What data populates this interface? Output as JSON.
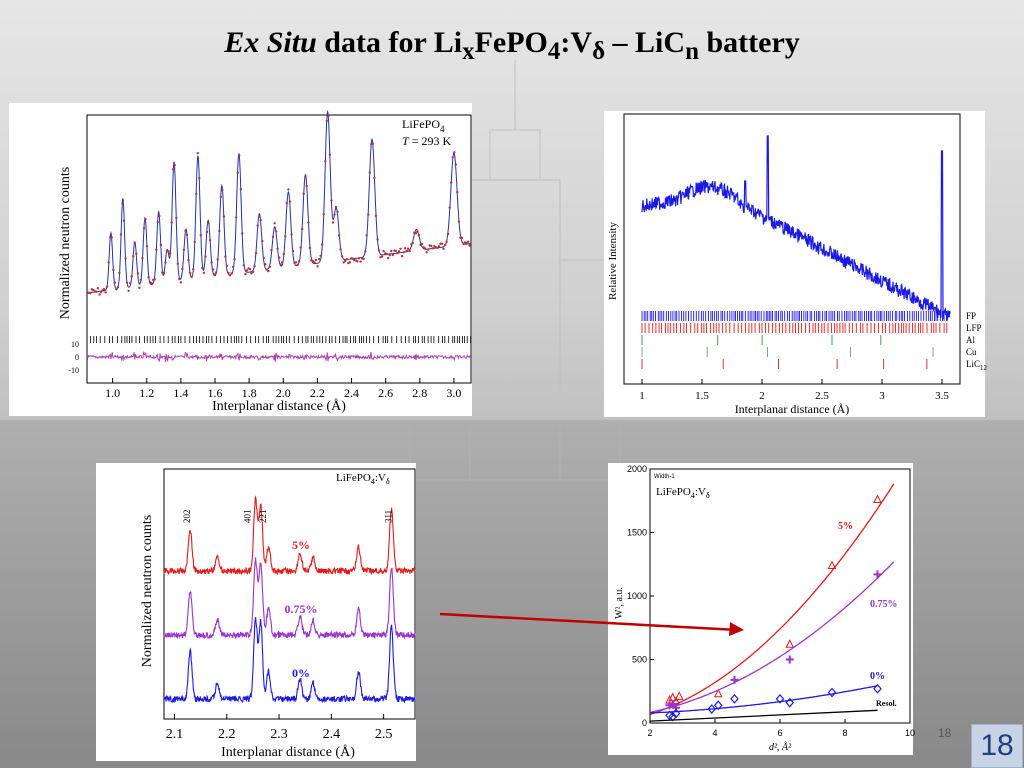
{
  "slide": {
    "title": {
      "italic": "Ex Situ",
      "text": " data for Li",
      "sub1": "x",
      "t2": "FePO",
      "sub2": "4",
      "t3": ":V",
      "sub3": "δ",
      "t4": " – LiC",
      "sub4": "n",
      "t5": " battery"
    },
    "slide_number_small": "18",
    "slide_number_badge": "18"
  },
  "chart_data": [
    {
      "type": "line",
      "panel": "rietveld",
      "annotation_line1": "LiFePO",
      "annotation_sub": "4",
      "annotation_line2_italic": "T",
      "annotation_line2": " = 293 K",
      "xlabel": "Interplanar distance (Å)",
      "ylabel": "Normalized neutron counts",
      "xlim": [
        0.85,
        3.1
      ],
      "xticks": [
        "1.0",
        "1.2",
        "1.4",
        "1.6",
        "1.8",
        "2.0",
        "2.2",
        "2.4",
        "2.6",
        "2.8",
        "3.0"
      ],
      "diff_ticks": [
        "10",
        "0",
        "-10"
      ],
      "peaks": [
        {
          "d": 0.99,
          "h": 0.38
        },
        {
          "d": 1.06,
          "h": 0.6
        },
        {
          "d": 1.13,
          "h": 0.3
        },
        {
          "d": 1.19,
          "h": 0.45
        },
        {
          "d": 1.27,
          "h": 0.48
        },
        {
          "d": 1.32,
          "h": 0.22
        },
        {
          "d": 1.36,
          "h": 0.8
        },
        {
          "d": 1.43,
          "h": 0.34
        },
        {
          "d": 1.5,
          "h": 0.82
        },
        {
          "d": 1.56,
          "h": 0.38
        },
        {
          "d": 1.64,
          "h": 0.6
        },
        {
          "d": 1.74,
          "h": 0.8
        },
        {
          "d": 1.86,
          "h": 0.38
        },
        {
          "d": 1.95,
          "h": 0.28
        },
        {
          "d": 2.03,
          "h": 0.5
        },
        {
          "d": 2.13,
          "h": 0.6
        },
        {
          "d": 2.26,
          "h": 1.0
        },
        {
          "d": 2.31,
          "h": 0.35
        },
        {
          "d": 2.52,
          "h": 0.78
        },
        {
          "d": 2.78,
          "h": 0.14
        },
        {
          "d": 3.0,
          "h": 0.62
        }
      ]
    },
    {
      "type": "line",
      "panel": "ex-situ-pattern",
      "xlabel": "Interplanar distance (Å)",
      "ylabel": "Relative Intensity",
      "xlim": [
        0.85,
        3.65
      ],
      "xticks": [
        "1",
        "1.5",
        "2",
        "2.5",
        "3",
        "3.5"
      ],
      "series": [
        {
          "name": "FP",
          "color": "#1a1ae6"
        },
        {
          "name": "LFP",
          "color": "#e61a1a"
        },
        {
          "name": "Al",
          "color": "#2a9a2a"
        },
        {
          "name": "Cu",
          "color": "#888888"
        },
        {
          "name": "LiC",
          "sub": "12",
          "color": "#e61a1a"
        }
      ]
    },
    {
      "type": "line",
      "panel": "doped-comparison",
      "annotation": "LiFePO",
      "annotation_sub": "4",
      "annotation_tail": ":V",
      "annotation_sub2": "δ",
      "xlabel": "Interplanar distance (Å)",
      "ylabel": "Normalized neutron counts",
      "xlim": [
        2.08,
        2.56
      ],
      "xticks": [
        "2.1",
        "2.2",
        "2.3",
        "2.4",
        "2.5"
      ],
      "peak_labels": [
        {
          "label": "202",
          "d": 2.13
        },
        {
          "label": "401",
          "d": 2.245
        },
        {
          "label": "221",
          "d": 2.275
        },
        {
          "label": "311",
          "d": 2.515
        }
      ],
      "series": [
        {
          "name": "5%",
          "color": "#e61a1a"
        },
        {
          "name": "0.75%",
          "color": "#9933cc"
        },
        {
          "name": "0%",
          "color": "#1a1ae6"
        }
      ]
    },
    {
      "type": "scatter",
      "panel": "williamson-hall",
      "small_label": "Width-1",
      "annotation": "LiFePO",
      "annotation_sub": "4",
      "annotation_tail": ":V",
      "annotation_sub2": "δ",
      "xlabel": "d², Å²",
      "ylabel": "W², a.u.",
      "xlim": [
        2,
        10
      ],
      "ylim": [
        0,
        2000
      ],
      "xticks": [
        "2",
        "4",
        "6",
        "8",
        "10"
      ],
      "yticks": [
        "0",
        "500",
        "1000",
        "1500",
        "2000"
      ],
      "series": [
        {
          "name": "5%",
          "color": "#e61a1a",
          "marker": "triangle",
          "x": [
            2.6,
            2.7,
            2.8,
            2.9,
            4.1,
            6.3,
            7.6,
            9.0
          ],
          "y": [
            180,
            200,
            170,
            210,
            230,
            620,
            1240,
            1760
          ]
        },
        {
          "name": "0.75%",
          "color": "#9933cc",
          "marker": "plus",
          "x": [
            2.6,
            2.7,
            2.8,
            4.6,
            6.3,
            9.0
          ],
          "y": [
            140,
            150,
            120,
            340,
            500,
            1170
          ]
        },
        {
          "name": "0%",
          "color": "#1a1ae6",
          "marker": "diamond",
          "x": [
            2.6,
            2.7,
            2.8,
            3.9,
            4.1,
            4.6,
            6.0,
            6.3,
            7.6,
            9.0
          ],
          "y": [
            60,
            50,
            75,
            110,
            140,
            190,
            190,
            160,
            240,
            270
          ]
        },
        {
          "name": "Resol.",
          "color": "#000000",
          "marker": "none",
          "x": [
            2,
            9
          ],
          "y": [
            15,
            100
          ]
        }
      ]
    }
  ]
}
